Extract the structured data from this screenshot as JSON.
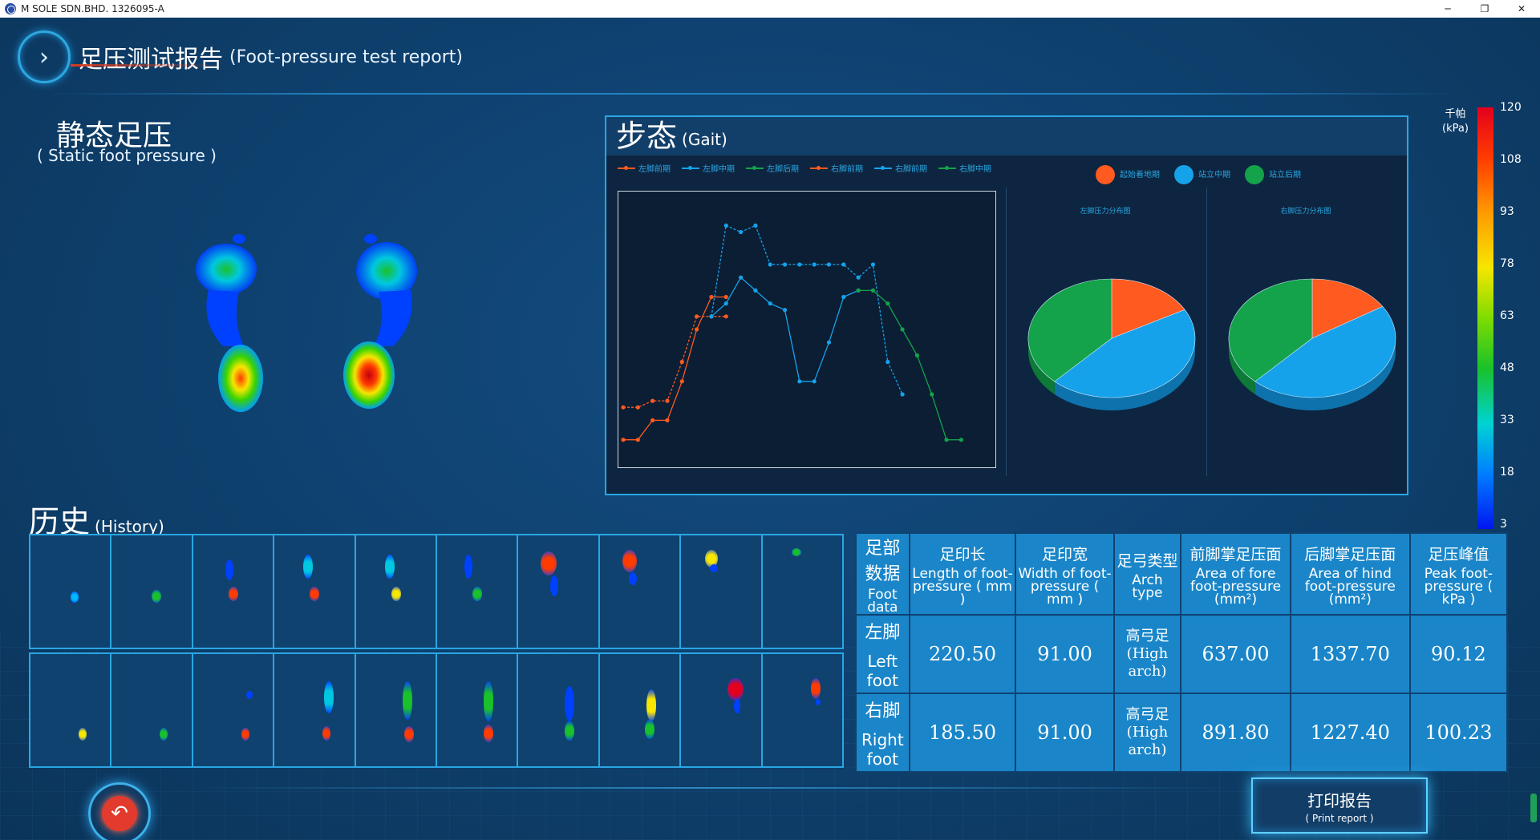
{
  "window": {
    "title": "M SOLE SDN.BHD. 1326095-A",
    "minimize": "─",
    "restore": "❐",
    "close": "✕"
  },
  "header": {
    "title": "足压测试报告",
    "subtitle": "(Foot-pressure test report)"
  },
  "static": {
    "title": "静态足压",
    "subtitle": "( Static foot pressure )"
  },
  "gait": {
    "title": "步态",
    "subtitle": "(Gait)",
    "legend": [
      "左脚前期",
      "左脚中期",
      "左脚后期",
      "右脚前期",
      "右脚前期",
      "右脚中期"
    ],
    "pie_legend": [
      "起始着地期",
      "站立中期",
      "站立后期"
    ],
    "left_pie_caption": "左脚压力分布图",
    "right_pie_caption": "右脚压力分布图"
  },
  "colors": {
    "orange": "#ff5a1f",
    "blue": "#16a2ea",
    "green": "#14a24a",
    "accent": "#2aa6e3"
  },
  "chart_data": [
    {
      "type": "line",
      "x": [
        1,
        2,
        3,
        4,
        5,
        6,
        7,
        8,
        9,
        10,
        11,
        12,
        13,
        14,
        15,
        16,
        17,
        18,
        19,
        20,
        21,
        22,
        23,
        24,
        25,
        26
      ],
      "series": [
        {
          "name": "左脚前期",
          "values": [
            3,
            3,
            6,
            6,
            12,
            20,
            25,
            25,
            null,
            null,
            null,
            null,
            null,
            null,
            null,
            null,
            null,
            null,
            null,
            null,
            null,
            null,
            null,
            null,
            null,
            null
          ]
        },
        {
          "name": "左脚中期",
          "values": [
            null,
            null,
            null,
            null,
            null,
            null,
            22,
            24,
            28,
            26,
            24,
            23,
            12,
            12,
            18,
            25,
            26,
            null,
            null,
            null,
            null,
            null,
            null,
            null,
            null,
            null
          ]
        },
        {
          "name": "左脚后期",
          "values": [
            null,
            null,
            null,
            null,
            null,
            null,
            null,
            null,
            null,
            null,
            null,
            null,
            null,
            null,
            null,
            null,
            26,
            26,
            24,
            20,
            16,
            10,
            3,
            3,
            null,
            null
          ]
        },
        {
          "name": "右脚前期",
          "values": [
            8,
            8,
            9,
            9,
            15,
            22,
            22,
            22,
            null,
            null,
            null,
            null,
            null,
            null,
            null,
            null,
            null,
            null,
            null,
            null,
            null,
            null,
            null,
            null,
            null,
            null
          ]
        },
        {
          "name": "右脚前期",
          "values": [
            null,
            null,
            null,
            null,
            null,
            null,
            22,
            36,
            35,
            36,
            30,
            30,
            30,
            30,
            30,
            30,
            28,
            30,
            15,
            10,
            null,
            null,
            null,
            null,
            null,
            null
          ]
        },
        {
          "name": "右脚中期",
          "values": [
            null,
            null,
            null,
            null,
            null,
            null,
            null,
            null,
            null,
            null,
            null,
            null,
            null,
            null,
            null,
            null,
            null,
            null,
            null,
            null,
            null,
            null,
            null,
            null,
            null,
            null
          ]
        }
      ]
    },
    {
      "type": "pie",
      "title": "左脚压力分布图",
      "slices": [
        {
          "name": "起始着地期",
          "value": 17
        },
        {
          "name": "站立中期",
          "value": 45
        },
        {
          "name": "站立后期",
          "value": 38
        }
      ]
    },
    {
      "type": "pie",
      "title": "右脚压力分布图",
      "slices": [
        {
          "name": "起始着地期",
          "value": 16
        },
        {
          "name": "站立中期",
          "value": 46
        },
        {
          "name": "站立后期",
          "value": 38
        }
      ]
    }
  ],
  "colorbar": {
    "unit_zh": "千帕",
    "unit_en": "(kPa)",
    "ticks": [
      "120",
      "108",
      "93",
      "78",
      "63",
      "48",
      "33",
      "18",
      "3"
    ]
  },
  "history": {
    "title": "历史",
    "subtitle": "(History)"
  },
  "table": {
    "headers": [
      {
        "zh": "足部数据",
        "en": "Foot data"
      },
      {
        "zh": "足印长",
        "en": "Length of foot-pressure ( mm )"
      },
      {
        "zh": "足印宽",
        "en": "Width of foot-pressure ( mm )"
      },
      {
        "zh": "足弓类型",
        "en": "Arch type"
      },
      {
        "zh": "前脚掌足压面",
        "en": "Area of fore foot-pressure (mm²)"
      },
      {
        "zh": "后脚掌足压面",
        "en": "Area of hind foot-pressure (mm²)"
      },
      {
        "zh": "足压峰值",
        "en": "Peak foot-pressure ( kPa )"
      }
    ],
    "rows": [
      {
        "zh": "左脚",
        "en": "Left foot",
        "length": "220.50",
        "width": "91.00",
        "arch": "高弓足 (High arch)",
        "fore": "637.00",
        "hind": "1337.70",
        "peak": "90.12"
      },
      {
        "zh": "右脚",
        "en": "Right foot",
        "length": "185.50",
        "width": "91.00",
        "arch": "高弓足 (High arch)",
        "fore": "891.80",
        "hind": "1227.40",
        "peak": "100.23"
      }
    ]
  },
  "buttons": {
    "print_zh": "打印报告",
    "print_en": "( Print report )"
  }
}
